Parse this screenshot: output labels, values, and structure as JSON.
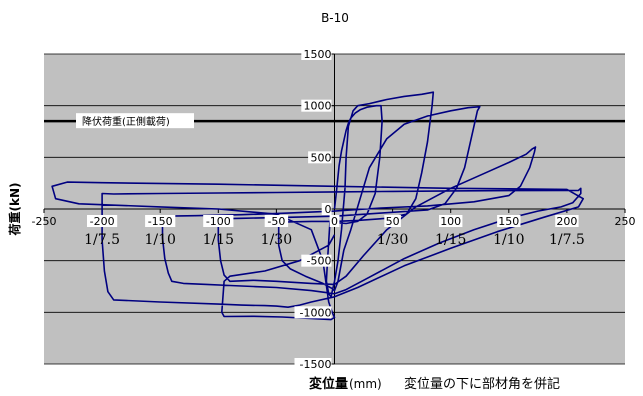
{
  "chart_data": {
    "type": "line",
    "title": "B-10",
    "xlabel_bold": "変位量",
    "xlabel_unit": "(mm)",
    "xlabel_note": "変位量の下に部材角を併記",
    "ylabel": "荷重(kN)",
    "xlim": [
      -250,
      250
    ],
    "ylim": [
      -1500,
      1500
    ],
    "x_ticks": [
      -250,
      -200,
      -150,
      -100,
      -50,
      0,
      50,
      100,
      150,
      200,
      250
    ],
    "y_ticks": [
      -1500,
      -1000,
      -500,
      0,
      500,
      1000,
      1500
    ],
    "grid": true,
    "yield_line": {
      "label": "降伏荷重(正側載荷)",
      "y": 850
    },
    "drift_labels": [
      {
        "x": -200,
        "text": "1/7.5"
      },
      {
        "x": -150,
        "text": "1/10"
      },
      {
        "x": -100,
        "text": "1/15"
      },
      {
        "x": -50,
        "text": "1/30"
      },
      {
        "x": 50,
        "text": "1/30"
      },
      {
        "x": 100,
        "text": "1/15"
      },
      {
        "x": 150,
        "text": "1/10"
      },
      {
        "x": 200,
        "text": "1/7.5"
      }
    ],
    "colors": {
      "plot_bg": "#c0c0c0",
      "curve": "#000080",
      "grid": "#000000",
      "yield_line": "#000000"
    },
    "series": [
      {
        "points": [
          [
            0,
            0
          ],
          [
            2,
            200
          ],
          [
            4,
            420
          ],
          [
            6,
            560
          ],
          [
            8,
            660
          ],
          [
            10,
            760
          ],
          [
            12,
            830
          ],
          [
            14,
            880
          ],
          [
            18,
            930
          ],
          [
            22,
            960
          ],
          [
            28,
            985
          ],
          [
            36,
            1000
          ],
          [
            40,
            1000
          ],
          [
            41,
            850
          ],
          [
            39,
            500
          ],
          [
            35,
            150
          ],
          [
            28,
            -50
          ],
          [
            20,
            -120
          ],
          [
            10,
            -140
          ],
          [
            0,
            -130
          ],
          [
            -4,
            -130
          ],
          [
            -6,
            -500
          ],
          [
            -7,
            -700
          ],
          [
            -5,
            -820
          ],
          [
            -3,
            -850
          ],
          [
            0,
            -700
          ],
          [
            3,
            -500
          ],
          [
            6,
            -200
          ],
          [
            9,
            200
          ],
          [
            10,
            500
          ],
          [
            12,
            800
          ],
          [
            16,
            950
          ],
          [
            20,
            1000
          ],
          [
            30,
            1020
          ],
          [
            45,
            1060
          ],
          [
            60,
            1090
          ],
          [
            75,
            1110
          ],
          [
            85,
            1130
          ],
          [
            84,
            1000
          ],
          [
            80,
            650
          ],
          [
            75,
            350
          ],
          [
            70,
            100
          ],
          [
            62,
            -50
          ],
          [
            45,
            -90
          ],
          [
            20,
            -110
          ],
          [
            0,
            -120
          ],
          [
            -20,
            -120
          ],
          [
            -40,
            -125
          ],
          [
            -48,
            -130
          ],
          [
            -48,
            -350
          ],
          [
            -45,
            -500
          ],
          [
            -38,
            -580
          ],
          [
            -25,
            -650
          ],
          [
            -10,
            -720
          ],
          [
            -2,
            -770
          ],
          [
            0,
            -790
          ],
          [
            3,
            -700
          ],
          [
            8,
            -400
          ],
          [
            14,
            -200
          ],
          [
            22,
            100
          ],
          [
            30,
            400
          ],
          [
            45,
            680
          ],
          [
            60,
            820
          ],
          [
            80,
            900
          ],
          [
            100,
            950
          ],
          [
            115,
            980
          ],
          [
            125,
            990
          ],
          [
            123,
            950
          ],
          [
            118,
            700
          ],
          [
            112,
            400
          ],
          [
            105,
            200
          ],
          [
            95,
            50
          ],
          [
            80,
            -10
          ],
          [
            40,
            -40
          ],
          [
            0,
            -70
          ],
          [
            -40,
            -80
          ],
          [
            -80,
            -90
          ],
          [
            -100,
            -95
          ],
          [
            -100,
            -300
          ],
          [
            -98,
            -500
          ],
          [
            -95,
            -640
          ],
          [
            -90,
            -700
          ],
          [
            -70,
            -690
          ],
          [
            -50,
            -700
          ],
          [
            -20,
            -720
          ],
          [
            0,
            -730
          ],
          [
            10,
            -650
          ],
          [
            25,
            -450
          ],
          [
            45,
            -200
          ],
          [
            70,
            20
          ],
          [
            100,
            200
          ],
          [
            130,
            350
          ],
          [
            150,
            450
          ],
          [
            165,
            530
          ],
          [
            170,
            580
          ],
          [
            173,
            600
          ],
          [
            172,
            550
          ],
          [
            168,
            400
          ],
          [
            160,
            220
          ],
          [
            150,
            130
          ],
          [
            120,
            70
          ],
          [
            80,
            30
          ],
          [
            40,
            10
          ],
          [
            0,
            -20
          ],
          [
            -40,
            -40
          ],
          [
            -80,
            -55
          ],
          [
            -120,
            -65
          ],
          [
            -148,
            -70
          ],
          [
            -148,
            -280
          ],
          [
            -146,
            -480
          ],
          [
            -143,
            -620
          ],
          [
            -140,
            -700
          ],
          [
            -130,
            -720
          ],
          [
            -110,
            -730
          ],
          [
            -90,
            -740
          ],
          [
            -70,
            -750
          ],
          [
            -50,
            -760
          ],
          [
            -20,
            -790
          ],
          [
            0,
            -820
          ],
          [
            10,
            -780
          ],
          [
            30,
            -660
          ],
          [
            60,
            -480
          ],
          [
            90,
            -330
          ],
          [
            120,
            -200
          ],
          [
            150,
            -90
          ],
          [
            175,
            -20
          ],
          [
            195,
            20
          ],
          [
            205,
            60
          ],
          [
            212,
            150
          ],
          [
            212,
            200
          ],
          [
            210,
            180
          ],
          [
            150,
            178
          ],
          [
            100,
            175
          ],
          [
            50,
            170
          ],
          [
            0,
            165
          ],
          [
            -50,
            160
          ],
          [
            -100,
            155
          ],
          [
            -150,
            150
          ],
          [
            -190,
            145
          ],
          [
            -200,
            150
          ],
          [
            -200,
            -60
          ],
          [
            -200,
            -300
          ],
          [
            -198,
            -600
          ],
          [
            -195,
            -800
          ],
          [
            -190,
            -880
          ],
          [
            -150,
            -900
          ],
          [
            -100,
            -920
          ],
          [
            -80,
            -930
          ],
          [
            -60,
            -935
          ],
          [
            -50,
            -940
          ],
          [
            -40,
            -950
          ],
          [
            -30,
            -930
          ],
          [
            -20,
            -900
          ],
          [
            0,
            -850
          ],
          [
            20,
            -760
          ],
          [
            60,
            -550
          ],
          [
            100,
            -380
          ],
          [
            140,
            -220
          ],
          [
            180,
            -80
          ],
          [
            210,
            20
          ],
          [
            214,
            100
          ],
          [
            200,
            190
          ],
          [
            100,
            200
          ],
          [
            0,
            220
          ],
          [
            -100,
            240
          ],
          [
            -200,
            255
          ],
          [
            -230,
            260
          ],
          [
            -243,
            220
          ],
          [
            -240,
            100
          ],
          [
            -220,
            50
          ],
          [
            -150,
            20
          ],
          [
            -100,
            0
          ],
          [
            -50,
            -50
          ],
          [
            -20,
            -200
          ],
          [
            -10,
            -500
          ],
          [
            -5,
            -900
          ],
          [
            -2,
            -1000
          ],
          [
            0,
            -1050
          ],
          [
            -3,
            -1070
          ],
          [
            -45,
            -1045
          ],
          [
            -70,
            -1038
          ],
          [
            -95,
            -1040
          ],
          [
            -97,
            -1000
          ],
          [
            -95,
            -700
          ],
          [
            -90,
            -650
          ],
          [
            -60,
            -600
          ],
          [
            -30,
            -500
          ],
          [
            -5,
            -350
          ],
          [
            0,
            -250
          ]
        ]
      }
    ]
  }
}
